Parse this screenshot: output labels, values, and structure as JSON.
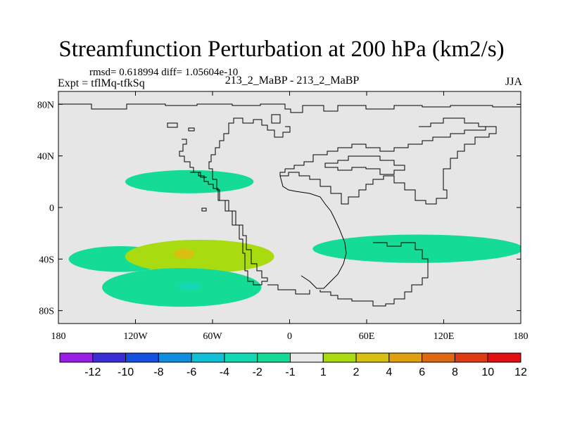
{
  "header": {
    "title": "Streamfunction Perturbation at 200 hPa (km2/s)",
    "stats": "rmsd= 0.618994 diff= 1.05604e-10",
    "experiment": "Expt = tflMq-tfkSq",
    "run_label": "213_2_MaBP - 213_2_MaBP",
    "season": "JJA"
  },
  "chart_data": {
    "type": "heatmap",
    "title": "Streamfunction Perturbation at 200 hPa (km2/s)",
    "x_ticks": [
      {
        "value": -180,
        "label": "180"
      },
      {
        "value": -120,
        "label": "120W"
      },
      {
        "value": -60,
        "label": "60W"
      },
      {
        "value": 0,
        "label": "0"
      },
      {
        "value": 60,
        "label": "60E"
      },
      {
        "value": 120,
        "label": "120E"
      },
      {
        "value": 180,
        "label": "180"
      }
    ],
    "y_ticks": [
      {
        "value": 80,
        "label": "80N"
      },
      {
        "value": 40,
        "label": "40N"
      },
      {
        "value": 0,
        "label": "0"
      },
      {
        "value": -40,
        "label": "40S"
      },
      {
        "value": -80,
        "label": "80S"
      }
    ],
    "xlim": [
      -180,
      180
    ],
    "ylim": [
      -90,
      90
    ],
    "background_color": "#e6e6e6",
    "colorbar": {
      "labels": [
        "-12",
        "-10",
        "-8",
        "-6",
        "-4",
        "-2",
        "-1",
        "1",
        "2",
        "4",
        "6",
        "8",
        "10",
        "12"
      ],
      "colors": [
        "#9a1ee6",
        "#3b2dd6",
        "#1450e0",
        "#0f8ee0",
        "#10c0d8",
        "#12d8b4",
        "#14dc96",
        "#e8e8e8",
        "#a8dc10",
        "#d8c010",
        "#e0a010",
        "#e06810",
        "#e03a10",
        "#e01010"
      ]
    },
    "anomalies": [
      {
        "lon": -78,
        "lat": 20,
        "lon_radius": 50,
        "lat_radius": 9,
        "band": "-2 to -1"
      },
      {
        "lon": -132,
        "lat": -40,
        "lon_radius": 40,
        "lat_radius": 10,
        "band": "-2 to -1"
      },
      {
        "lon": -70,
        "lat": -38,
        "lon_radius": 58,
        "lat_radius": 13,
        "band": "1 to 2"
      },
      {
        "lon": -82,
        "lat": -36,
        "lon_radius": 8,
        "lat_radius": 4,
        "band": "2 to 4"
      },
      {
        "lon": -84,
        "lat": -62,
        "lon_radius": 62,
        "lat_radius": 15,
        "band": "-2 to -1"
      },
      {
        "lon": -78,
        "lat": -61,
        "lon_radius": 9,
        "lat_radius": 3,
        "band": "-4 to -2"
      },
      {
        "lon": 100,
        "lat": -32,
        "lon_radius": 82,
        "lat_radius": 11,
        "band": "-2 to -1"
      }
    ]
  }
}
